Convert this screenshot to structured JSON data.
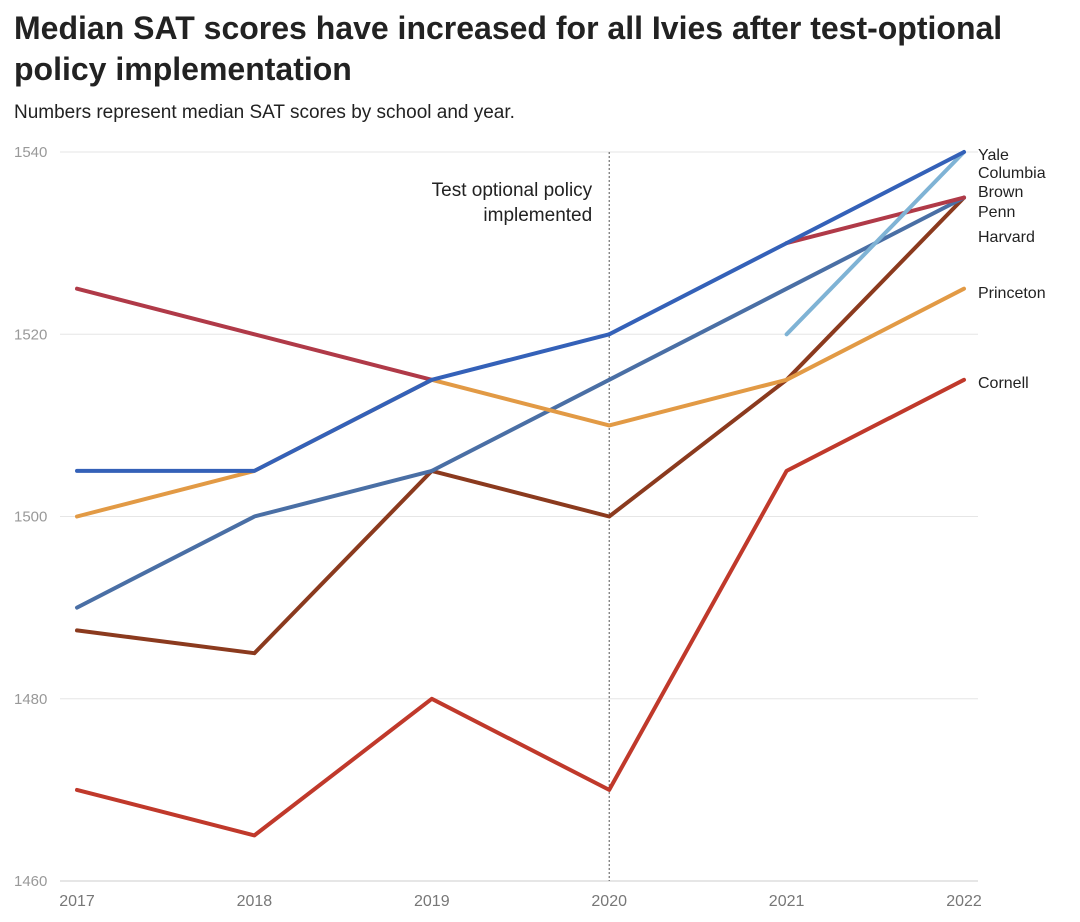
{
  "title": "Median SAT scores have increased for all Ivies after test-optional policy implementation",
  "subtitle": "Numbers represent median SAT scores by school and year.",
  "chart_data": {
    "type": "line",
    "x": [
      "2017",
      "2018",
      "2019",
      "2020",
      "2021",
      "2022"
    ],
    "ylim": [
      1460,
      1540
    ],
    "yticks": [
      "1460",
      "1480",
      "1500",
      "1520",
      "1540"
    ],
    "grid": true,
    "annotation": {
      "x": "2020",
      "lines": [
        "Test optional policy",
        "implemented"
      ]
    },
    "series": [
      {
        "name": "Cornell",
        "color": "#c0392b",
        "values": [
          1470,
          1465,
          1480,
          1470,
          1505,
          1515
        ]
      },
      {
        "name": "Penn",
        "color": "#8b3a1e",
        "values": [
          1487.5,
          1485,
          1505,
          1500,
          1515,
          1535
        ]
      },
      {
        "name": "Harvard",
        "color": "#4a6fa5",
        "values": [
          1490,
          1500,
          1505,
          1515,
          1525,
          1535
        ]
      },
      {
        "name": "Princeton",
        "color": "#e29a45",
        "values": [
          1500,
          1505,
          1515,
          1510,
          1515,
          1525
        ]
      },
      {
        "name": "Brown",
        "color": "#b03a48",
        "values": [
          1525,
          1520,
          1515,
          null,
          1530,
          1535
        ]
      },
      {
        "name": "Columbia",
        "color": "#7fb3d5",
        "values": [
          null,
          null,
          null,
          null,
          1520,
          1540
        ]
      },
      {
        "name": "Yale",
        "color": "#3461b8",
        "values": [
          1505,
          1505,
          1515,
          1520,
          1530,
          1540
        ]
      }
    ],
    "end_labels": [
      "Yale",
      "Columbia",
      "Brown",
      "Penn",
      "Harvard",
      "Princeton",
      "Cornell"
    ]
  }
}
